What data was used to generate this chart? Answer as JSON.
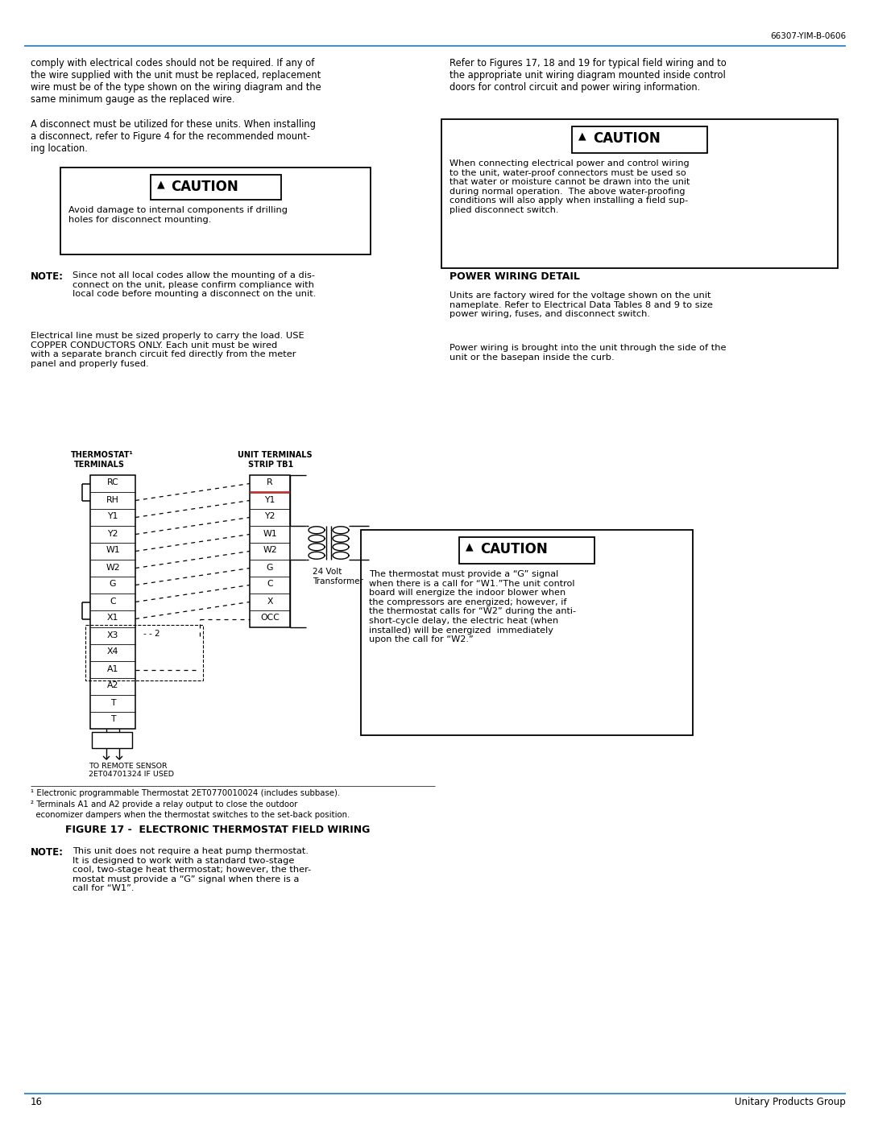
{
  "page_number": "16",
  "doc_number": "66307-YIM-B-0606",
  "footer_text": "Unitary Products Group",
  "bg_color": "#ffffff",
  "line_color": "#4a90c4",
  "text_color": "#000000",
  "left_col_para1": "comply with electrical codes should not be required. If any of\nthe wire supplied with the unit must be replaced, replacement\nwire must be of the type shown on the wiring diagram and the\nsame minimum gauge as the replaced wire.",
  "left_col_para2": "A disconnect must be utilized for these units. When installing\na disconnect, refer to Figure 4 for the recommended mount-\ning location.",
  "right_col_para1": "Refer to Figures 17, 18 and 19 for typical field wiring and to\nthe appropriate unit wiring diagram mounted inside control\ndoors for control circuit and power wiring information.",
  "caution_left_text": "Avoid damage to internal components if drilling\nholes for disconnect mounting.",
  "caution_right_text": "When connecting electrical power and control wiring\nto the unit, water-proof connectors must be used so\nthat water or moisture cannot be drawn into the unit\nduring normal operation.  The above water-proofing\nconditions will also apply when installing a field sup-\nplied disconnect switch.",
  "note_label": "NOTE:",
  "note_text": "Since not all local codes allow the mounting of a dis-\nconnect on the unit, please confirm compliance with\nlocal code before mounting a disconnect on the unit.",
  "power_heading": "POWER WIRING DETAIL",
  "power_para1": "Units are factory wired for the voltage shown on the unit\nnameplate. Refer to Electrical Data Tables 8 and 9 to size\npower wiring, fuses, and disconnect switch.",
  "power_para2": "Power wiring is brought into the unit through the side of the\nunit or the basepan inside the curb.",
  "left_col_para3": "Electrical line must be sized properly to carry the load. USE\nCOPPER CONDUCTORS ONLY. Each unit must be wired\nwith a separate branch circuit fed directly from the meter\npanel and properly fused.",
  "transformer_label": "24 Volt\nTransformer",
  "left_terminals": [
    "RC",
    "RH",
    "Y1",
    "Y2",
    "W1",
    "W2",
    "G",
    "C",
    "X1",
    "X3",
    "X4",
    "A1",
    "A2",
    "T",
    "T"
  ],
  "right_terminals": [
    "R",
    "Y1",
    "Y2",
    "W1",
    "W2",
    "G",
    "C",
    "X",
    "OCC"
  ],
  "caution_diagram_text": "The thermostat must provide a “G” signal\nwhen there is a call for “W1.”The unit control\nboard will energize the indoor blower when\nthe compressors are energized; however, if\nthe thermostat calls for “W2” during the anti-\nshort-cycle delay, the electric heat (when\ninstalled) will be energized  immediately\nupon the call for “W2.”",
  "figure_label": "FIGURE 17 -  ELECTRONIC THERMOSTAT FIELD WIRING",
  "footnote1": "¹ Electronic programmable Thermostat 2ET0770010024 (includes subbase).",
  "footnote2": "² Terminals A1 and A2 provide a relay output to close the outdoor",
  "footnote2b": "  economizer dampers when the thermostat switches to the set-back position.",
  "note2_label": "NOTE:",
  "note2_text": "This unit does not require a heat pump thermostat.\nIt is designed to work with a standard two-stage\ncool, two-stage heat thermostat; however, the ther-\nmostat must provide a “G” signal when there is a\ncall for “W1”."
}
